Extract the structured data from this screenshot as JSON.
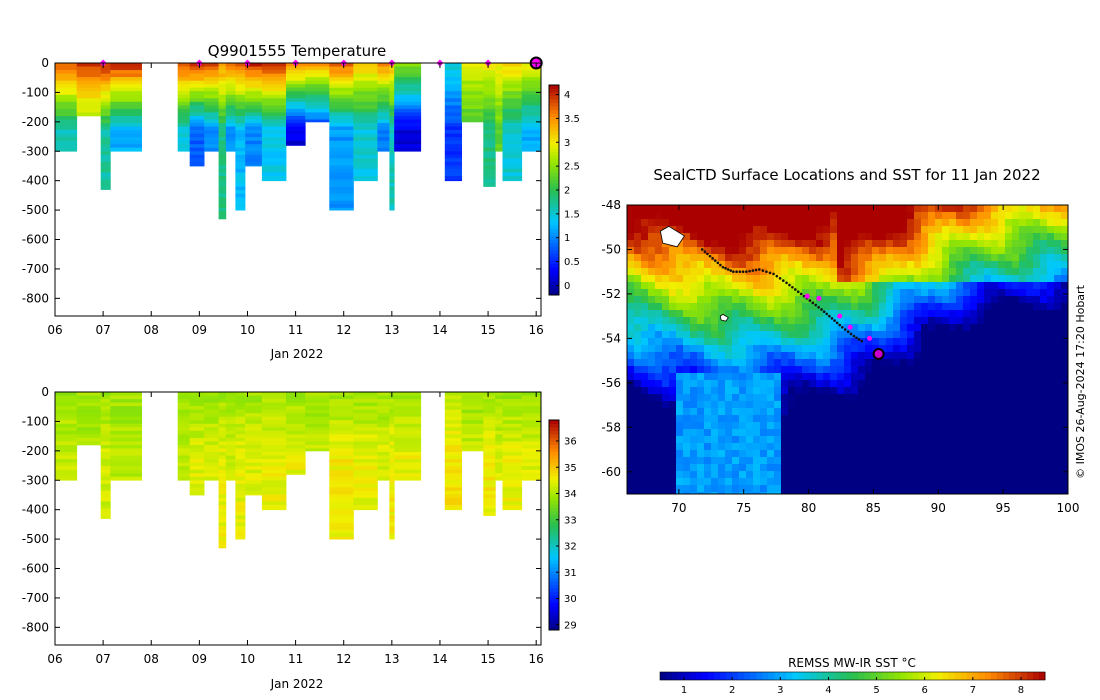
{
  "chart_data": [
    {
      "type": "heatmap",
      "panel": "temperature-profiles",
      "title": "Q9901555  Temperature",
      "xlabel": "Jan 2022",
      "ylabel": "",
      "x_ticks": [
        "06",
        "07",
        "08",
        "09",
        "10",
        "11",
        "12",
        "13",
        "14",
        "15",
        "16"
      ],
      "x_range": [
        6,
        16.1
      ],
      "y_ticks": [
        "0",
        "-100",
        "-200",
        "-300",
        "-400",
        "-500",
        "-600",
        "-700",
        "-800"
      ],
      "y_range": [
        -860,
        0
      ],
      "colorbar": {
        "ticks": [
          "0",
          "0.5",
          "1",
          "1.5",
          "2",
          "2.5",
          "3",
          "3.5",
          "4"
        ],
        "range": [
          -0.2,
          4.2
        ]
      },
      "surface_markers": [
        7.0,
        9.0,
        10.0,
        11.0,
        12.0,
        13.0,
        14.0,
        15.0
      ],
      "last_marker": 16.0,
      "profiles": [
        {
          "x0": 6.0,
          "x1": 6.45,
          "max_depth": 300,
          "surface": 3.8,
          "deep": 1.6
        },
        {
          "x0": 6.45,
          "x1": 6.95,
          "max_depth": 180,
          "surface": 3.9,
          "deep": 2.3
        },
        {
          "x0": 6.95,
          "x1": 7.15,
          "max_depth": 430,
          "surface": 4.0,
          "deep": 1.7
        },
        {
          "x0": 7.15,
          "x1": 7.8,
          "max_depth": 300,
          "surface": 4.0,
          "deep": 1.2
        },
        {
          "x0": 8.55,
          "x1": 8.8,
          "max_depth": 300,
          "surface": 3.8,
          "deep": 1.5
        },
        {
          "x0": 8.8,
          "x1": 9.1,
          "max_depth": 350,
          "surface": 4.0,
          "deep": 0.8
        },
        {
          "x0": 9.1,
          "x1": 9.4,
          "max_depth": 300,
          "surface": 3.9,
          "deep": 1.0
        },
        {
          "x0": 9.4,
          "x1": 9.55,
          "max_depth": 530,
          "surface": 3.5,
          "deep": 1.8
        },
        {
          "x0": 9.55,
          "x1": 9.75,
          "max_depth": 300,
          "surface": 3.7,
          "deep": 1.1
        },
        {
          "x0": 9.75,
          "x1": 9.95,
          "max_depth": 500,
          "surface": 3.8,
          "deep": 1.3
        },
        {
          "x0": 9.95,
          "x1": 10.3,
          "max_depth": 350,
          "surface": 4.0,
          "deep": 1.0
        },
        {
          "x0": 10.3,
          "x1": 10.8,
          "max_depth": 400,
          "surface": 3.9,
          "deep": 1.4
        },
        {
          "x0": 10.8,
          "x1": 11.2,
          "max_depth": 280,
          "surface": 3.6,
          "deep": 0.2
        },
        {
          "x0": 11.2,
          "x1": 11.7,
          "max_depth": 200,
          "surface": 3.4,
          "deep": 0.4
        },
        {
          "x0": 11.7,
          "x1": 12.2,
          "max_depth": 500,
          "surface": 3.7,
          "deep": 1.1
        },
        {
          "x0": 12.2,
          "x1": 12.7,
          "max_depth": 400,
          "surface": 3.2,
          "deep": 1.5
        },
        {
          "x0": 12.7,
          "x1": 12.95,
          "max_depth": 300,
          "surface": 3.5,
          "deep": 1.0
        },
        {
          "x0": 12.95,
          "x1": 13.05,
          "max_depth": 500,
          "surface": 3.3,
          "deep": 1.6
        },
        {
          "x0": 13.05,
          "x1": 13.6,
          "max_depth": 300,
          "surface": 2.5,
          "deep": 0.2
        },
        {
          "x0": 14.1,
          "x1": 14.45,
          "max_depth": 400,
          "surface": 1.5,
          "deep": 0.6
        },
        {
          "x0": 14.45,
          "x1": 14.9,
          "max_depth": 200,
          "surface": 2.9,
          "deep": 2.1
        },
        {
          "x0": 14.9,
          "x1": 15.15,
          "max_depth": 420,
          "surface": 3.0,
          "deep": 1.8
        },
        {
          "x0": 15.15,
          "x1": 15.3,
          "max_depth": 300,
          "surface": 3.0,
          "deep": 2.3
        },
        {
          "x0": 15.3,
          "x1": 15.7,
          "max_depth": 400,
          "surface": 3.2,
          "deep": 1.5
        },
        {
          "x0": 15.7,
          "x1": 16.1,
          "max_depth": 300,
          "surface": 3.0,
          "deep": 1.2
        }
      ]
    },
    {
      "type": "heatmap",
      "panel": "salinity-profiles",
      "title": "",
      "xlabel": "Jan 2022",
      "ylabel": "",
      "x_ticks": [
        "06",
        "07",
        "08",
        "09",
        "10",
        "11",
        "12",
        "13",
        "14",
        "15",
        "16"
      ],
      "x_range": [
        6,
        16.1
      ],
      "y_ticks": [
        "0",
        "-100",
        "-200",
        "-300",
        "-400",
        "-500",
        "-600",
        "-700",
        "-800"
      ],
      "y_range": [
        -860,
        0
      ],
      "colorbar": {
        "ticks": [
          "29",
          "30",
          "31",
          "32",
          "33",
          "34",
          "35",
          "36"
        ],
        "range": [
          28.8,
          36.8
        ]
      },
      "profiles": [
        {
          "x0": 6.0,
          "x1": 6.45,
          "max_depth": 300,
          "surface": 33.9,
          "deep": 34.2
        },
        {
          "x0": 6.45,
          "x1": 6.95,
          "max_depth": 180,
          "surface": 33.9,
          "deep": 34.0
        },
        {
          "x0": 6.95,
          "x1": 7.15,
          "max_depth": 430,
          "surface": 33.9,
          "deep": 34.3
        },
        {
          "x0": 7.15,
          "x1": 7.8,
          "max_depth": 300,
          "surface": 33.9,
          "deep": 34.1
        },
        {
          "x0": 8.55,
          "x1": 8.8,
          "max_depth": 300,
          "surface": 33.9,
          "deep": 34.2
        },
        {
          "x0": 8.8,
          "x1": 9.1,
          "max_depth": 350,
          "surface": 33.9,
          "deep": 34.4
        },
        {
          "x0": 9.1,
          "x1": 9.4,
          "max_depth": 300,
          "surface": 33.9,
          "deep": 34.3
        },
        {
          "x0": 9.4,
          "x1": 9.55,
          "max_depth": 530,
          "surface": 33.9,
          "deep": 34.5
        },
        {
          "x0": 9.55,
          "x1": 9.75,
          "max_depth": 300,
          "surface": 33.9,
          "deep": 34.3
        },
        {
          "x0": 9.75,
          "x1": 9.95,
          "max_depth": 500,
          "surface": 33.9,
          "deep": 34.5
        },
        {
          "x0": 9.95,
          "x1": 10.3,
          "max_depth": 350,
          "surface": 33.9,
          "deep": 34.4
        },
        {
          "x0": 10.3,
          "x1": 10.8,
          "max_depth": 400,
          "surface": 33.9,
          "deep": 34.5
        },
        {
          "x0": 10.8,
          "x1": 11.2,
          "max_depth": 280,
          "surface": 33.9,
          "deep": 34.5
        },
        {
          "x0": 11.2,
          "x1": 11.7,
          "max_depth": 200,
          "surface": 33.9,
          "deep": 34.2
        },
        {
          "x0": 11.7,
          "x1": 12.2,
          "max_depth": 500,
          "surface": 33.9,
          "deep": 34.6
        },
        {
          "x0": 12.2,
          "x1": 12.7,
          "max_depth": 400,
          "surface": 33.9,
          "deep": 34.5
        },
        {
          "x0": 12.7,
          "x1": 12.95,
          "max_depth": 300,
          "surface": 33.9,
          "deep": 34.4
        },
        {
          "x0": 12.95,
          "x1": 13.05,
          "max_depth": 500,
          "surface": 33.9,
          "deep": 34.6
        },
        {
          "x0": 13.05,
          "x1": 13.6,
          "max_depth": 300,
          "surface": 33.9,
          "deep": 34.5
        },
        {
          "x0": 14.1,
          "x1": 14.45,
          "max_depth": 400,
          "surface": 34.1,
          "deep": 34.7
        },
        {
          "x0": 14.45,
          "x1": 14.9,
          "max_depth": 200,
          "surface": 33.9,
          "deep": 34.3
        },
        {
          "x0": 14.9,
          "x1": 15.15,
          "max_depth": 420,
          "surface": 33.9,
          "deep": 34.6
        },
        {
          "x0": 15.15,
          "x1": 15.3,
          "max_depth": 300,
          "surface": 33.9,
          "deep": 34.4
        },
        {
          "x0": 15.3,
          "x1": 15.7,
          "max_depth": 400,
          "surface": 33.9,
          "deep": 34.5
        },
        {
          "x0": 15.7,
          "x1": 16.1,
          "max_depth": 300,
          "surface": 33.9,
          "deep": 34.4
        }
      ]
    },
    {
      "type": "heatmap",
      "panel": "sst-map",
      "title": "SealCTD Surface Locations and SST for 11 Jan 2022",
      "xlabel": "",
      "ylabel": "",
      "x_ticks": [
        "70",
        "75",
        "80",
        "85",
        "90",
        "95",
        "100"
      ],
      "x_range": [
        66,
        100
      ],
      "y_ticks": [
        "-48",
        "-50",
        "-52",
        "-54",
        "-56",
        "-58",
        "-60"
      ],
      "y_range": [
        -61,
        -48
      ],
      "colorbar": {
        "label": "REMSS MW-IR SST °C",
        "ticks": [
          "1",
          "2",
          "3",
          "4",
          "5",
          "6",
          "7",
          "8"
        ],
        "range": [
          0.5,
          8.5
        ]
      },
      "credit": "© IMOS 26-Aug-2024 17:20 Hobart",
      "track": [
        [
          71.8,
          -50.0
        ],
        [
          72.6,
          -50.4
        ],
        [
          73.4,
          -50.8
        ],
        [
          74.2,
          -51.0
        ],
        [
          75.2,
          -51.0
        ],
        [
          76.2,
          -50.9
        ],
        [
          77.3,
          -51.1
        ],
        [
          78.3,
          -51.5
        ],
        [
          79.2,
          -51.9
        ],
        [
          80.1,
          -52.3
        ],
        [
          81.0,
          -52.7
        ],
        [
          81.8,
          -53.1
        ],
        [
          82.6,
          -53.5
        ],
        [
          83.5,
          -53.9
        ],
        [
          84.3,
          -54.2
        ]
      ],
      "recent_surfacings": [
        [
          79.9,
          -52.1
        ],
        [
          80.8,
          -52.2
        ],
        [
          82.4,
          -53.0
        ],
        [
          83.2,
          -53.5
        ],
        [
          84.7,
          -54.0
        ]
      ],
      "latest_position": [
        85.4,
        -54.7
      ],
      "land": [
        [
          69.5,
          -49.5
        ],
        [
          73.5,
          -53.1
        ]
      ]
    }
  ],
  "colors": {
    "marker": "#ff00ff",
    "latest_marker_ring": "#cc00cc",
    "track": "#111111",
    "axis": "#000000"
  }
}
